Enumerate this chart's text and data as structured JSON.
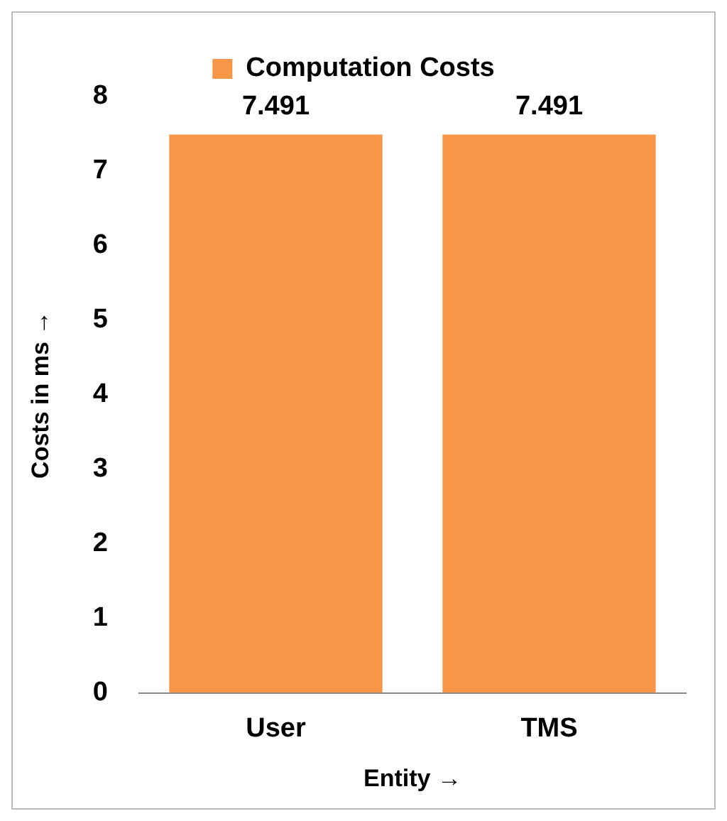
{
  "chart_data": {
    "type": "bar",
    "categories": [
      "User",
      "TMS"
    ],
    "series": [
      {
        "name": "Computation Costs",
        "color": "#f79646",
        "values": [
          7.491,
          7.491
        ]
      }
    ],
    "xlabel": "Entity →",
    "ylabel": "Costs in ms →",
    "ylim": [
      0,
      8
    ],
    "yticks": [
      0,
      1,
      2,
      3,
      4,
      5,
      6,
      7,
      8
    ],
    "grid": false,
    "legend": "top",
    "data_labels": true
  }
}
